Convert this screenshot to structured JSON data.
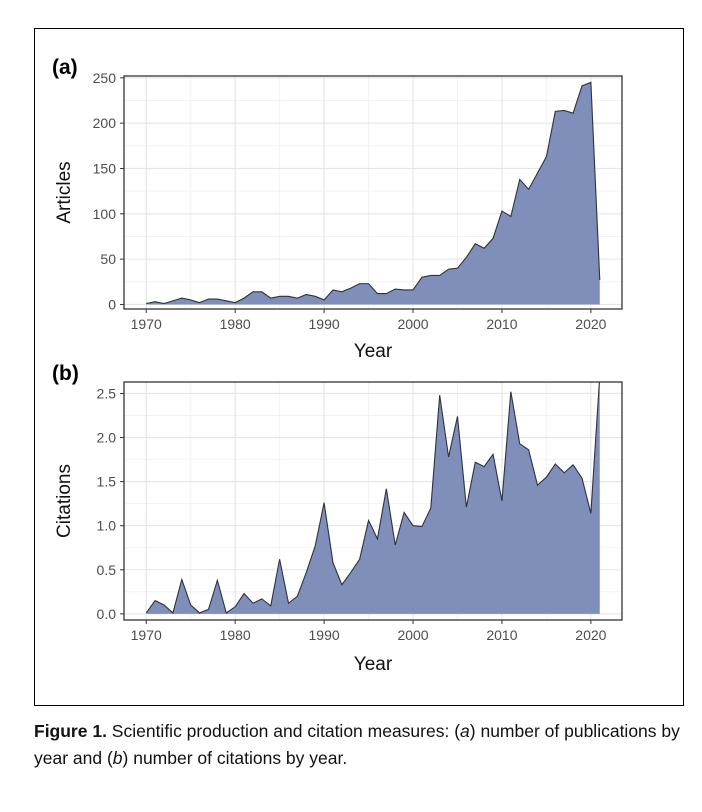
{
  "caption": {
    "label": "Figure 1.",
    "text_1": " Scientific production and citation measures: (",
    "em_a": "a",
    "text_2": ") number of publications by year and (",
    "em_b": "b",
    "text_3": ") number of citations by year."
  },
  "colors": {
    "fill": "#7f8fba",
    "line": "#2b3244",
    "grid": "#e5e5e5",
    "panel_border": "#333333"
  },
  "chart_data": [
    {
      "panel_label": "(a)",
      "type": "area",
      "xlabel": "Year",
      "ylabel": "Articles",
      "xlim": [
        1967.5,
        2023.5
      ],
      "ylim": [
        -5,
        252
      ],
      "xticks": [
        1970,
        1980,
        1990,
        2000,
        2010,
        2020
      ],
      "yticks": [
        0,
        50,
        100,
        150,
        200,
        250
      ],
      "grid": true,
      "x": [
        1970,
        1971,
        1972,
        1973,
        1974,
        1975,
        1976,
        1977,
        1978,
        1979,
        1980,
        1981,
        1982,
        1983,
        1984,
        1985,
        1986,
        1987,
        1988,
        1989,
        1990,
        1991,
        1992,
        1993,
        1994,
        1995,
        1996,
        1997,
        1998,
        1999,
        2000,
        2001,
        2002,
        2003,
        2004,
        2005,
        2006,
        2007,
        2008,
        2009,
        2010,
        2011,
        2012,
        2013,
        2014,
        2015,
        2016,
        2017,
        2018,
        2019,
        2020,
        2021
      ],
      "y": [
        1,
        3,
        1,
        4,
        7,
        5,
        2,
        6,
        6,
        4,
        2,
        7,
        14,
        14,
        7,
        9,
        9,
        7,
        11,
        9,
        5,
        16,
        14,
        18,
        23,
        23,
        12,
        12,
        17,
        16,
        16,
        30,
        32,
        32,
        39,
        40,
        52,
        67,
        62,
        73,
        103,
        97,
        138,
        127,
        145,
        163,
        213,
        214,
        211,
        241,
        245,
        27
      ]
    },
    {
      "panel_label": "(b)",
      "type": "area",
      "xlabel": "Year",
      "ylabel": "Citations",
      "xlim": [
        1967.5,
        2023.5
      ],
      "ylim": [
        -0.07,
        2.63
      ],
      "xticks": [
        1970,
        1980,
        1990,
        2000,
        2010,
        2020
      ],
      "yticks": [
        "0.0",
        "0.5",
        "1.0",
        "1.5",
        "2.0",
        "2.5"
      ],
      "grid": true,
      "x": [
        1970,
        1971,
        1972,
        1973,
        1974,
        1975,
        1976,
        1977,
        1978,
        1979,
        1980,
        1981,
        1982,
        1983,
        1984,
        1985,
        1986,
        1987,
        1988,
        1989,
        1990,
        1991,
        1992,
        1993,
        1994,
        1995,
        1996,
        1997,
        1998,
        1999,
        2000,
        2001,
        2002,
        2003,
        2004,
        2005,
        2006,
        2007,
        2008,
        2009,
        2010,
        2011,
        2012,
        2013,
        2014,
        2015,
        2016,
        2017,
        2018,
        2019,
        2020,
        2021
      ],
      "y": [
        0.01,
        0.15,
        0.1,
        0.01,
        0.39,
        0.1,
        0.01,
        0.05,
        0.38,
        0.01,
        0.08,
        0.23,
        0.12,
        0.17,
        0.09,
        0.62,
        0.12,
        0.2,
        0.47,
        0.77,
        1.26,
        0.58,
        0.33,
        0.47,
        0.62,
        1.06,
        0.85,
        1.42,
        0.78,
        1.15,
        1.0,
        0.99,
        1.2,
        2.48,
        1.78,
        2.24,
        1.21,
        1.72,
        1.67,
        1.81,
        1.28,
        2.52,
        1.93,
        1.86,
        1.46,
        1.55,
        1.7,
        1.6,
        1.69,
        1.54,
        1.14,
        2.7
      ]
    }
  ]
}
